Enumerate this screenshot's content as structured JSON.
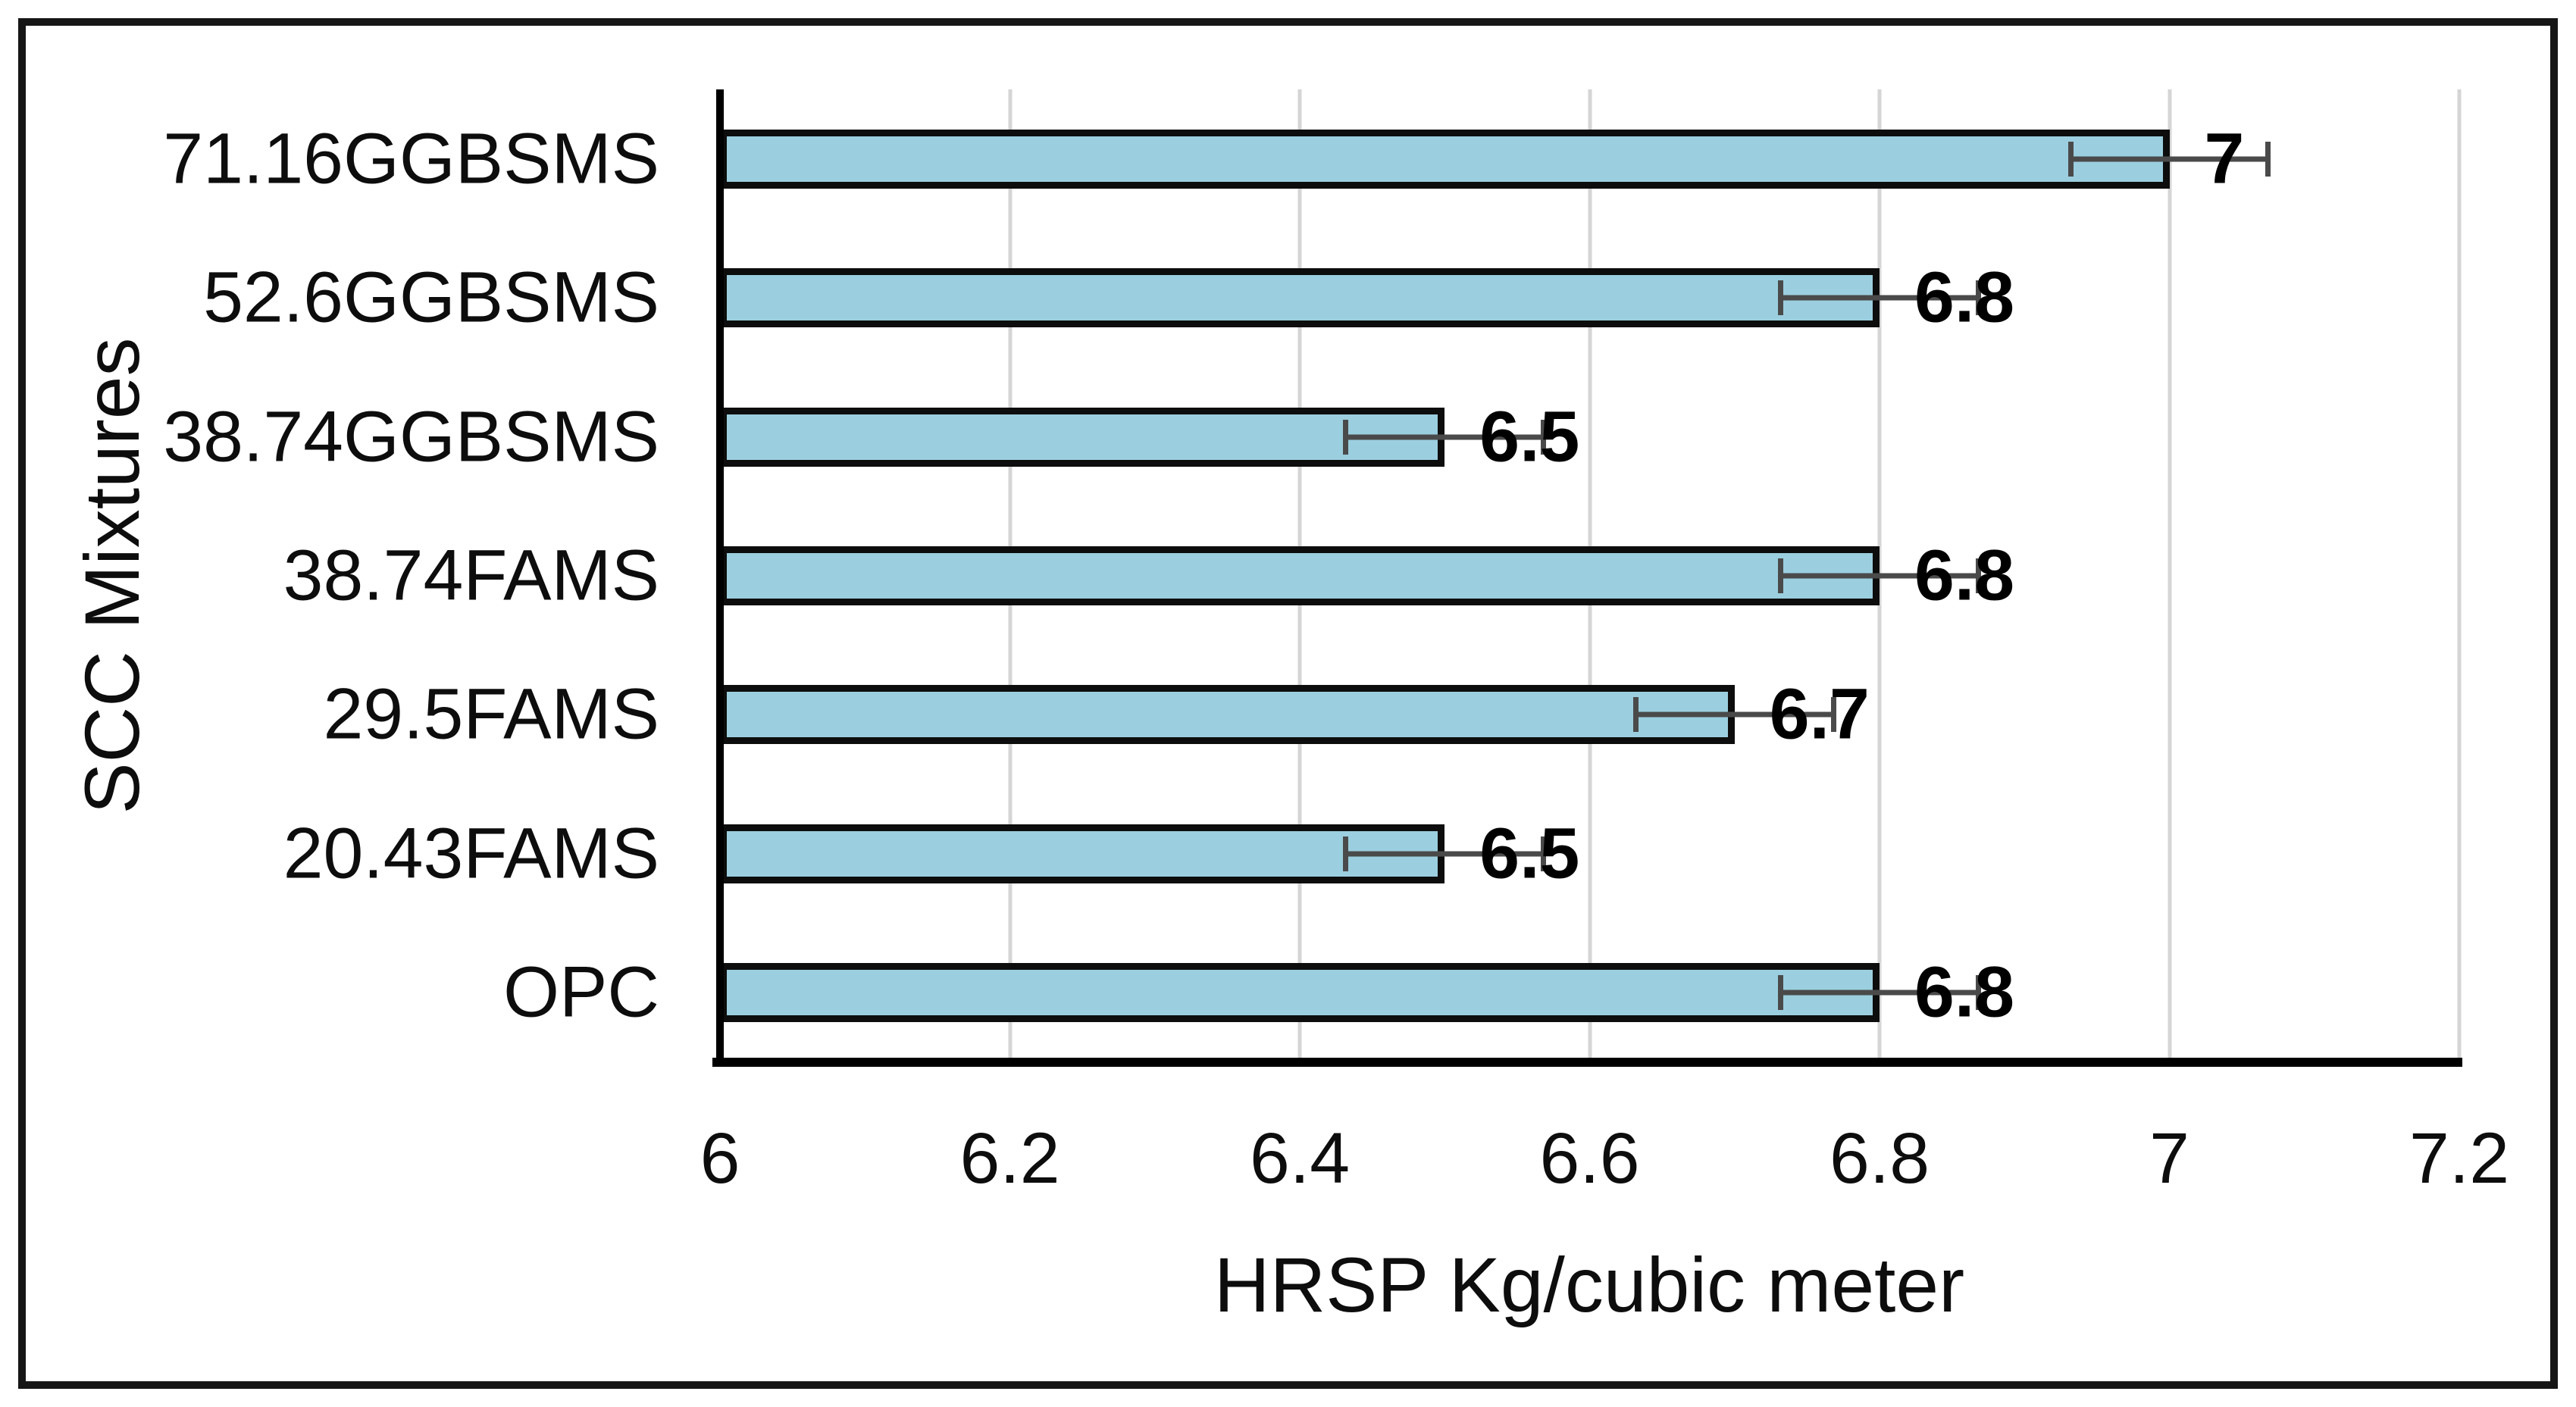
{
  "chart_data": {
    "type": "bar",
    "orientation": "horizontal",
    "categories": [
      "71.16GGBSMS",
      "52.6GGBSMS",
      "38.74GGBSMS",
      "38.74FAMS",
      "29.5FAMS",
      "20.43FAMS",
      "OPC"
    ],
    "values": [
      7,
      6.8,
      6.5,
      6.8,
      6.7,
      6.5,
      6.8
    ],
    "data_labels": [
      "7",
      "6.8",
      "6.5",
      "6.8",
      "6.7",
      "6.5",
      "6.8"
    ],
    "error_x": [
      0.07,
      0.07,
      0.07,
      0.07,
      0.07,
      0.07,
      0.07
    ],
    "xlabel": "HRSP Kg/cubic meter",
    "ylabel": "SCC Mixtures",
    "xlim": [
      6,
      7.2
    ],
    "xticks": [
      6,
      6.2,
      6.4,
      6.6,
      6.8,
      7,
      7.2
    ],
    "xtick_labels": [
      "6",
      "6.2",
      "6.4",
      "6.6",
      "6.8",
      "7",
      "7.2"
    ],
    "grid": true,
    "legend": "none",
    "title": "",
    "colors": {
      "bar_fill": "#9BCFDF",
      "bar_border": "#0d0d0d",
      "error_bar": "#4a4a4a",
      "gridline": "#d5d5d5",
      "axis_line": "#000000",
      "text": "#0d0d0d"
    }
  }
}
